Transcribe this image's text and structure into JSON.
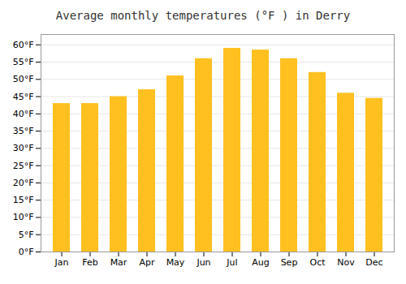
{
  "chart_data": {
    "type": "bar",
    "title": "Average monthly temperatures (°F ) in Derry",
    "categories": [
      "Jan",
      "Feb",
      "Mar",
      "Apr",
      "May",
      "Jun",
      "Jul",
      "Aug",
      "Sep",
      "Oct",
      "Nov",
      "Dec"
    ],
    "values": [
      43,
      43,
      45,
      47,
      51,
      56,
      59,
      58.5,
      56,
      52,
      46,
      44.5
    ],
    "color": "#FFC020",
    "ylim": [
      0,
      63
    ],
    "yticks": [
      {
        "value": 0,
        "label": "0°F"
      },
      {
        "value": 5,
        "label": "5°F"
      },
      {
        "value": 10,
        "label": "10°F"
      },
      {
        "value": 15,
        "label": "15°F"
      },
      {
        "value": 20,
        "label": "20°F"
      },
      {
        "value": 25,
        "label": "25°F"
      },
      {
        "value": 30,
        "label": "30°F"
      },
      {
        "value": 35,
        "label": "35°F"
      },
      {
        "value": 40,
        "label": "40°F"
      },
      {
        "value": 45,
        "label": "45°F"
      },
      {
        "value": 50,
        "label": "50°F"
      },
      {
        "value": 55,
        "label": "55°F"
      },
      {
        "value": 60,
        "label": "60°F"
      }
    ],
    "grid": true
  }
}
